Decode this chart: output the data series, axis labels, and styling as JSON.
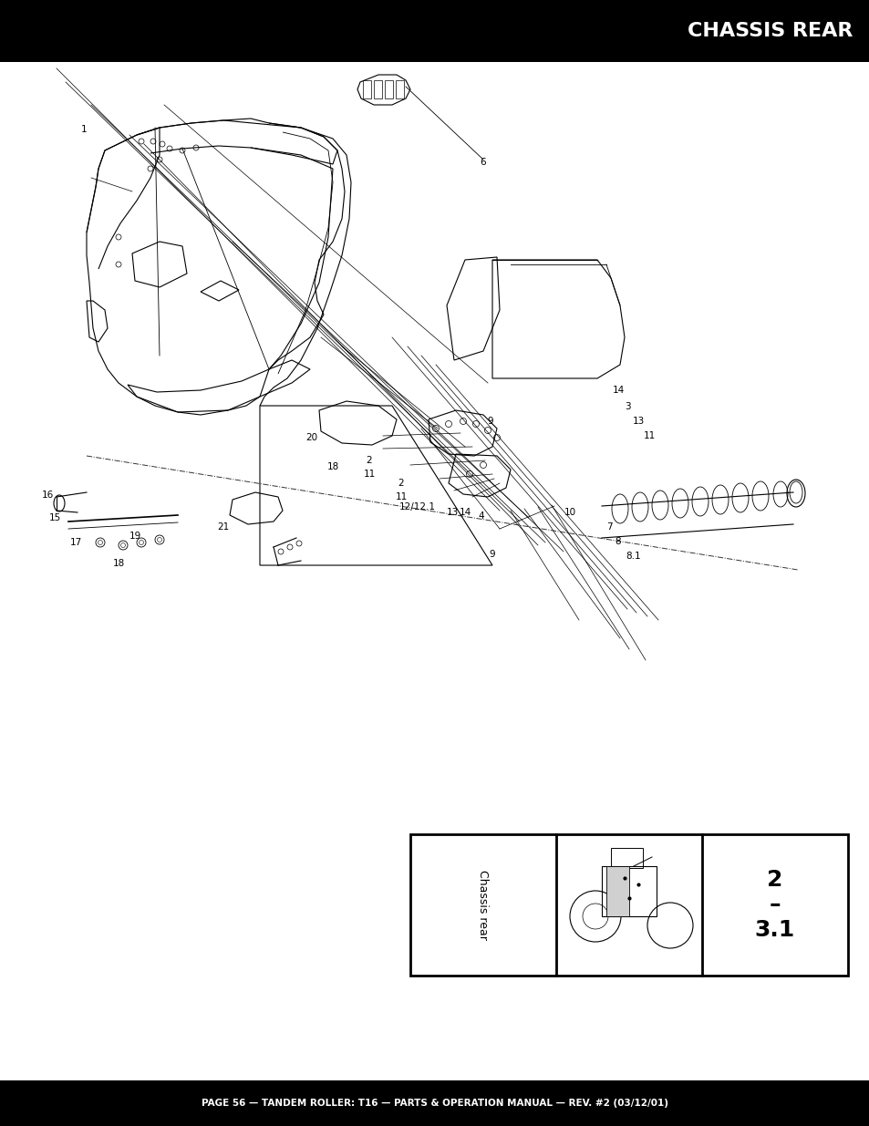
{
  "title": "CHASSIS REAR",
  "footer_text": "PAGE 56 — TANDEM ROLLER: T16 — PARTS & OPERATION MANUAL — REV. #2 (03/12/01)",
  "label_text": "Chassis rear",
  "ref_number": "2\n-\n3.1",
  "bg_color": "#ffffff",
  "header_bg": "#000000",
  "header_text_color": "#ffffff",
  "footer_bg": "#000000",
  "footer_text_color": "#ffffff",
  "page_width": 9.54,
  "page_height": 12.35
}
